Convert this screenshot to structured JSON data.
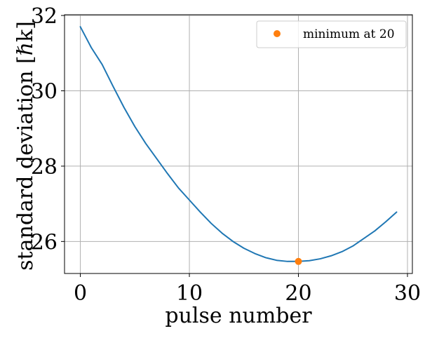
{
  "chart_data": {
    "type": "line",
    "title": "",
    "xlabel": "pulse number",
    "ylabel": "standard deviation [ℏk]",
    "xlim": [
      -1.45,
      30.45
    ],
    "ylim": [
      25.15,
      32.02
    ],
    "xticks": [
      0,
      10,
      20,
      30
    ],
    "yticks": [
      26,
      28,
      30,
      32
    ],
    "x_tick_labels": [
      "0",
      "10",
      "20",
      "30"
    ],
    "y_tick_labels": [
      "26",
      "28",
      "30",
      "32"
    ],
    "grid": true,
    "legend_position": "top-right",
    "series": [
      {
        "color": "#1f77b4",
        "x": [
          0,
          1,
          2,
          3,
          4,
          5,
          6,
          7,
          8,
          9,
          10,
          11,
          12,
          13,
          14,
          15,
          16,
          17,
          18,
          19,
          20,
          21,
          22,
          23,
          24,
          25,
          26,
          27,
          28,
          29
        ],
        "y": [
          31.7,
          31.15,
          30.7,
          30.12,
          29.56,
          29.05,
          28.6,
          28.2,
          27.8,
          27.42,
          27.1,
          26.78,
          26.48,
          26.22,
          26.0,
          25.82,
          25.68,
          25.57,
          25.5,
          25.47,
          25.47,
          25.49,
          25.54,
          25.62,
          25.73,
          25.88,
          26.08,
          26.28,
          26.52,
          26.78
        ]
      },
      {
        "name": "minimum at 20",
        "type": "scatter",
        "color": "#ff7f0e",
        "x": [
          20
        ],
        "y": [
          25.47
        ]
      }
    ]
  }
}
